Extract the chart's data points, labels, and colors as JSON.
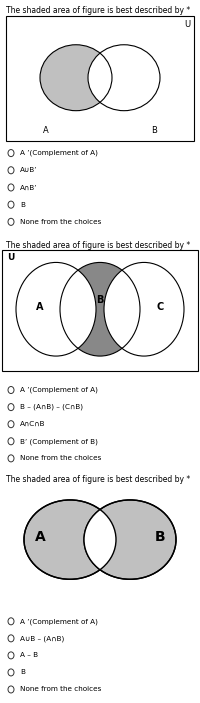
{
  "bg_color": "#ffffff",
  "text_color": "#000000",
  "gray_fill": "#c0c0c0",
  "gray_fill_dark": "#888888",
  "circle_edge": "#000000",
  "rect_edge": "#000000",
  "q1_title": "The shaded area of figure is best described by *",
  "q1_options": [
    "A ’(Complement of A)",
    "A∪B’",
    "A∩B’",
    "B",
    "None from the choices"
  ],
  "q2_title": "The shaded area of figure is best described by *",
  "q2_options": [
    "A ’(Complement of A)",
    "B – (A∩B) – (C∩B)",
    "A∩C∩B",
    "B’ (Complement of B)",
    "None from the choices"
  ],
  "q3_title": "The shaded area of figure is best described by *",
  "q3_options": [
    "A ’(Complement of A)",
    "A∪B – (A∩B)",
    "A – B",
    "B",
    "None from the choices"
  ]
}
